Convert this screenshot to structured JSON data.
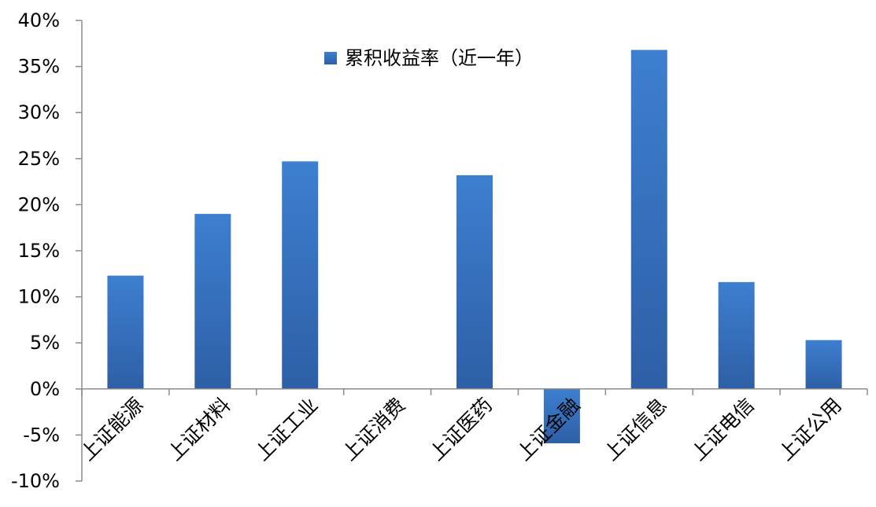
{
  "chart_data": {
    "type": "bar",
    "categories": [
      "上证能源",
      "上证材料",
      "上证工业",
      "上证消费",
      "上证医药",
      "上证金融",
      "上证信息",
      "上证电信",
      "上证公用"
    ],
    "series": [
      {
        "name": "累积收益率（近一年）",
        "values": [
          12.3,
          19.0,
          24.7,
          0.0,
          23.2,
          -5.9,
          36.8,
          11.6,
          5.3
        ],
        "color": "#3a78c8"
      }
    ],
    "ylim": [
      -10,
      40
    ],
    "yticks": [
      -10,
      -5,
      0,
      5,
      10,
      15,
      20,
      25,
      30,
      35,
      40
    ],
    "ytick_labels": [
      "-10%",
      "-5%",
      "0%",
      "5%",
      "10%",
      "15%",
      "20%",
      "25%",
      "30%",
      "35%",
      "40%"
    ],
    "legend_position": "top-center",
    "grid": false
  }
}
